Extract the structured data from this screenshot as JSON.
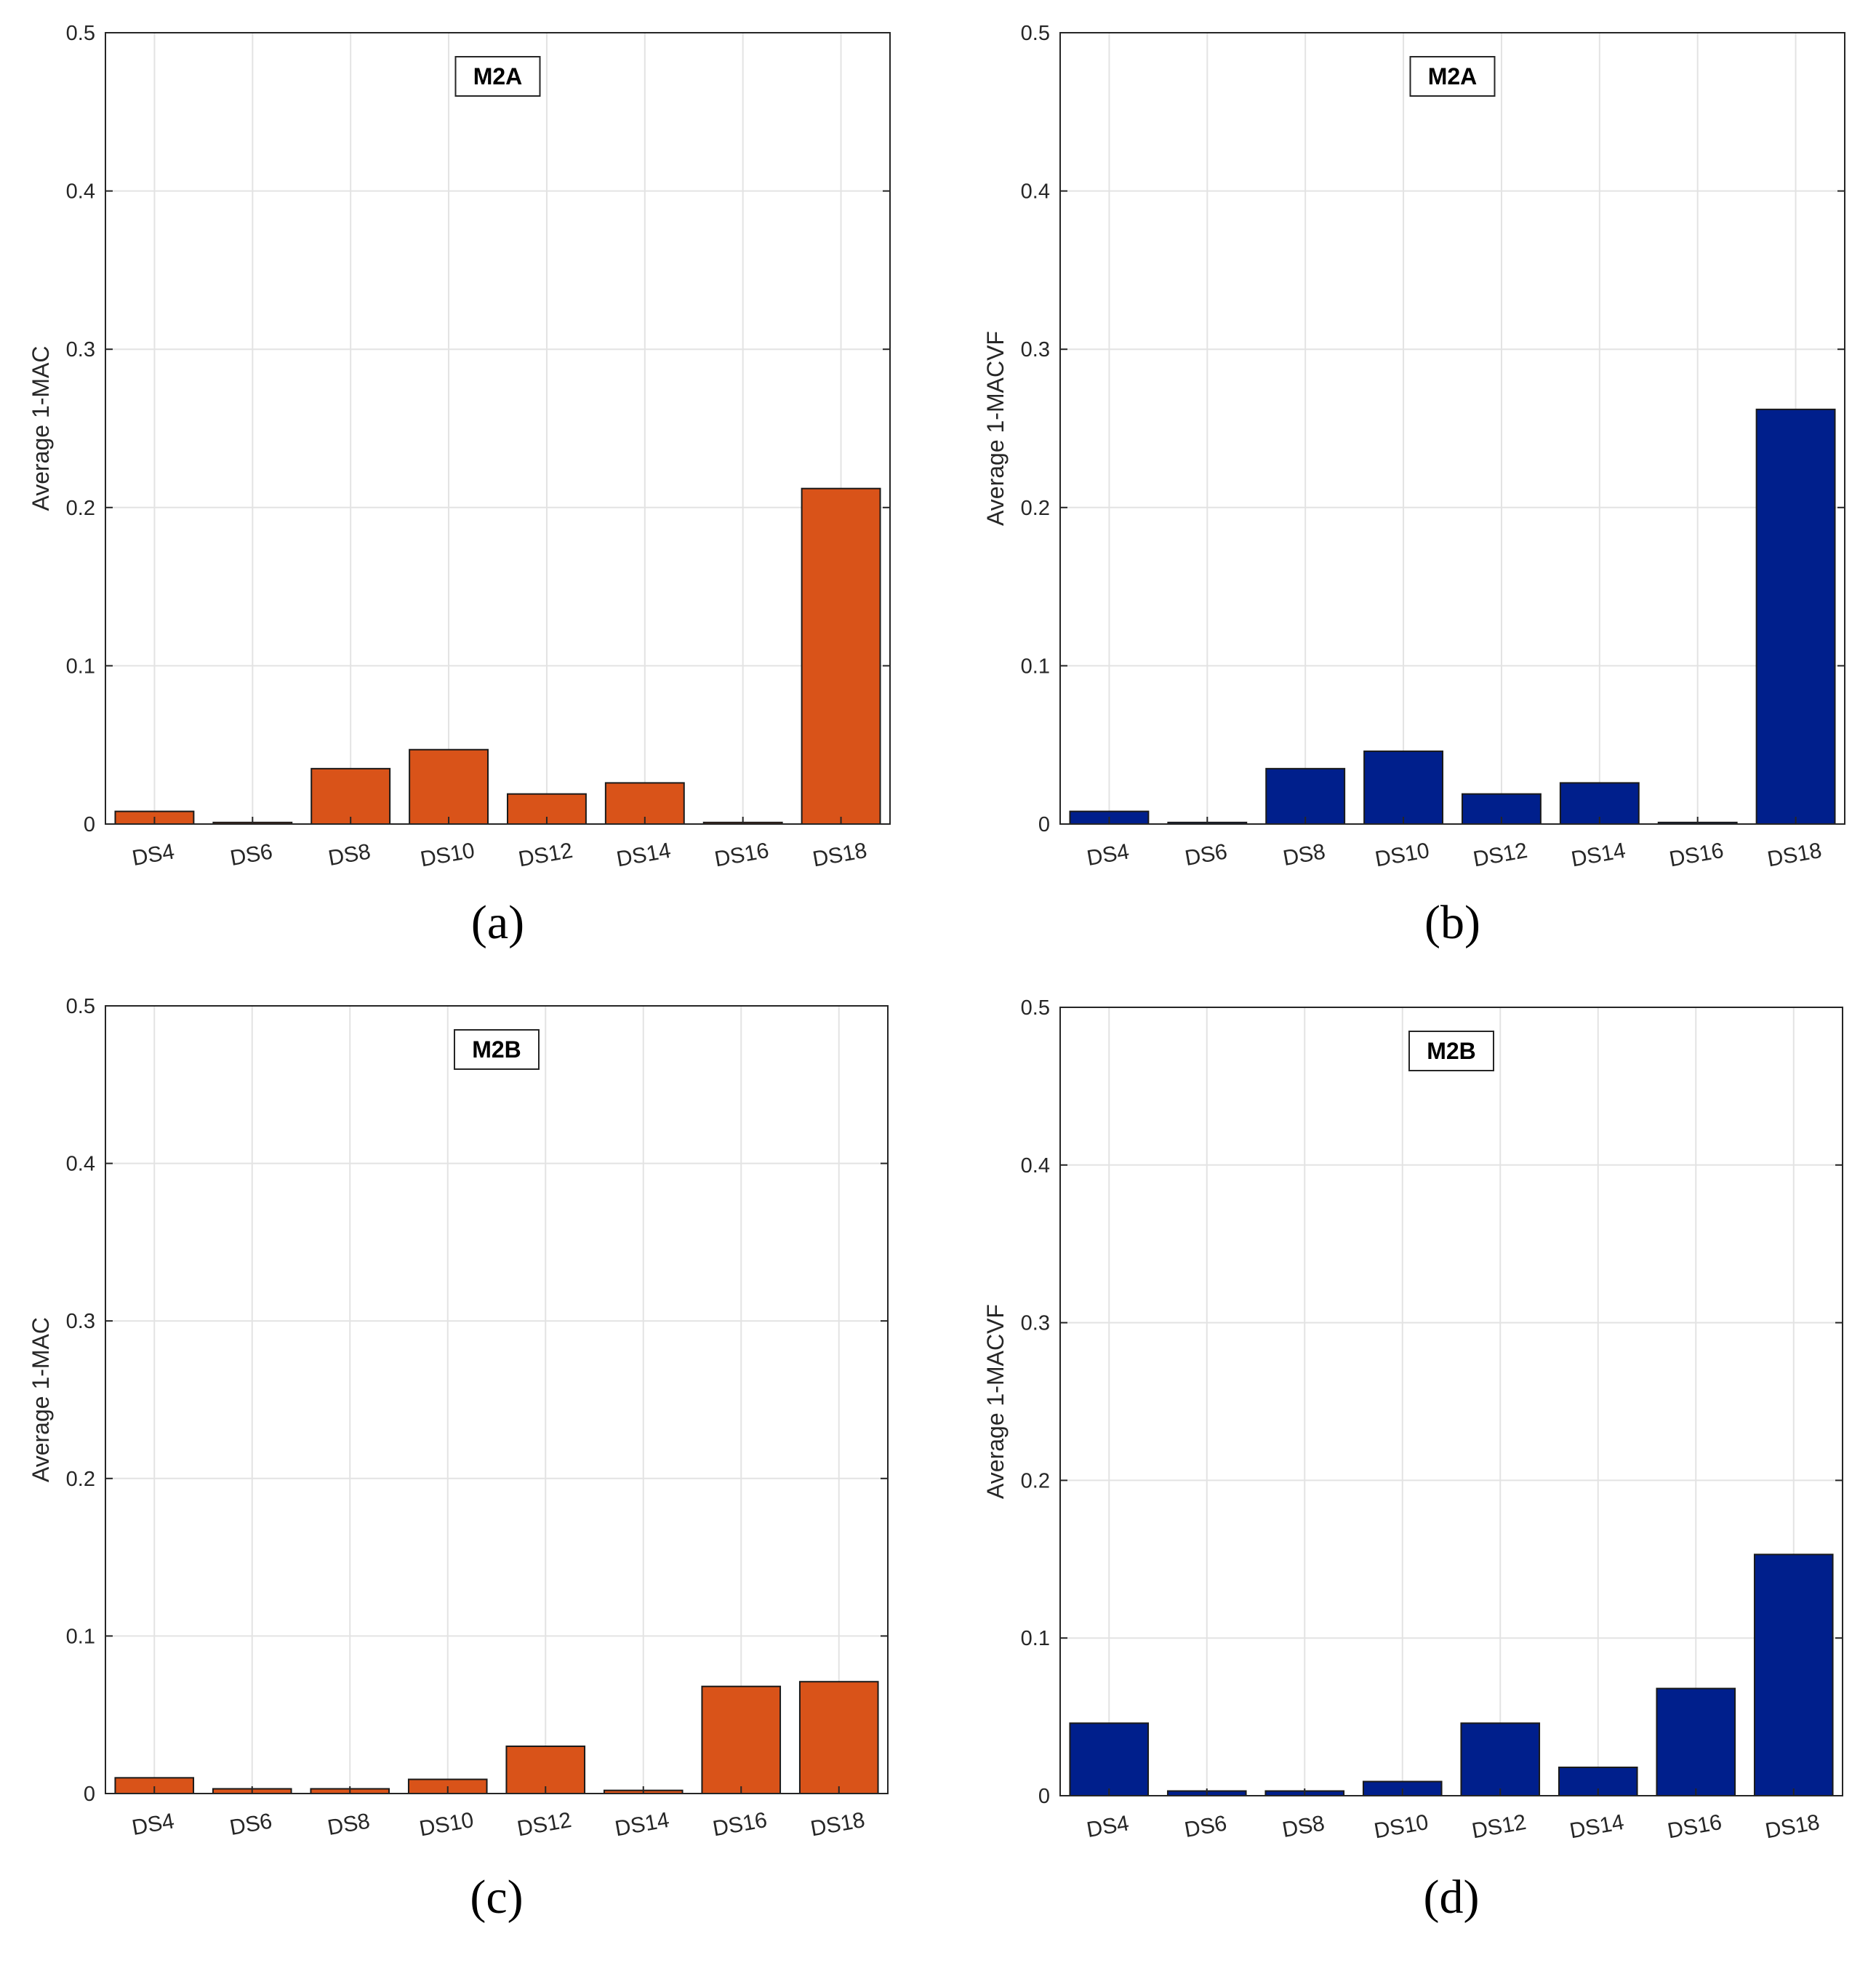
{
  "figure": {
    "orange_color": "#D95319",
    "blue_color": "#001F8C"
  },
  "chart_data": [
    {
      "type": "bar",
      "panel_label": "(a)",
      "title": "M2A",
      "xlabel": "",
      "ylabel": "Average 1-MAC",
      "categories": [
        "DS4",
        "DS6",
        "DS8",
        "DS10",
        "DS12",
        "DS14",
        "DS16",
        "DS18"
      ],
      "values": [
        0.008,
        0.001,
        0.035,
        0.047,
        0.019,
        0.026,
        0.001,
        0.212
      ],
      "ylim": [
        0,
        0.5
      ],
      "yticks": [
        "0",
        "0.1",
        "0.2",
        "0.3",
        "0.4",
        "0.5"
      ],
      "color": "#D95319",
      "grid": true
    },
    {
      "type": "bar",
      "panel_label": "(b)",
      "title": "M2A",
      "xlabel": "",
      "ylabel": "Average 1-MACVF",
      "categories": [
        "DS4",
        "DS6",
        "DS8",
        "DS10",
        "DS12",
        "DS14",
        "DS16",
        "DS18"
      ],
      "values": [
        0.008,
        0.001,
        0.035,
        0.046,
        0.019,
        0.026,
        0.001,
        0.262
      ],
      "ylim": [
        0,
        0.5
      ],
      "yticks": [
        "0",
        "0.1",
        "0.2",
        "0.3",
        "0.4",
        "0.5"
      ],
      "color": "#001F8C",
      "grid": true
    },
    {
      "type": "bar",
      "panel_label": "(c)",
      "title": "M2B",
      "xlabel": "",
      "ylabel": "Average 1-MAC",
      "categories": [
        "DS4",
        "DS6",
        "DS8",
        "DS10",
        "DS12",
        "DS14",
        "DS16",
        "DS18"
      ],
      "values": [
        0.01,
        0.003,
        0.003,
        0.009,
        0.03,
        0.002,
        0.068,
        0.071
      ],
      "ylim": [
        0,
        0.5
      ],
      "yticks": [
        "0",
        "0.1",
        "0.2",
        "0.3",
        "0.4",
        "0.5"
      ],
      "color": "#D95319",
      "grid": true
    },
    {
      "type": "bar",
      "panel_label": "(d)",
      "title": "M2B",
      "xlabel": "",
      "ylabel": "Average 1-MACVF",
      "categories": [
        "DS4",
        "DS6",
        "DS8",
        "DS10",
        "DS12",
        "DS14",
        "DS16",
        "DS18"
      ],
      "values": [
        0.046,
        0.003,
        0.003,
        0.009,
        0.046,
        0.018,
        0.068,
        0.153
      ],
      "ylim": [
        0,
        0.5
      ],
      "yticks": [
        "0",
        "0.1",
        "0.2",
        "0.3",
        "0.4",
        "0.5"
      ],
      "color": "#001F8C",
      "grid": true
    }
  ]
}
